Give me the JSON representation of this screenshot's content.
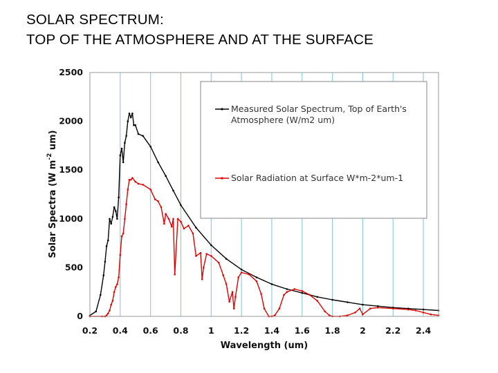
{
  "page": {
    "title_line1": "SOLAR SPECTRUM:",
    "title_line2": "TOP OF THE ATMOSPHERE AND AT THE SURFACE"
  },
  "chart_data": {
    "type": "line",
    "xlabel": "Wavelength (um)",
    "ylabel_parts": [
      "Solar Spectra (W m",
      "-2",
      " um)"
    ],
    "xlim": [
      0.2,
      2.5
    ],
    "ylim": [
      0,
      2500
    ],
    "x_ticks": [
      0.2,
      0.4,
      0.6,
      0.8,
      1,
      1.2,
      1.4,
      1.6,
      1.8,
      2,
      2.2,
      2.4
    ],
    "x_tick_labels": [
      "0.2",
      "0.4",
      "0.6",
      "0.8",
      "1",
      "1.2",
      "1.4",
      "1.6",
      "1.8",
      "2",
      "2.2",
      "2.4"
    ],
    "y_ticks": [
      0,
      500,
      1000,
      1500,
      2000,
      2500
    ],
    "y_tick_labels": [
      "0",
      "500",
      "1000",
      "1500",
      "2000",
      "2500"
    ],
    "vertical_grid": true,
    "grid_color": "#7fc4d8",
    "legend_position": "top-right",
    "series": [
      {
        "name": "Measured Solar Spectrum, Top of Earth's Atmosphere (W/m2 um)",
        "legend_lines": [
          "Measured Solar Spectrum, Top of Earth's",
          "Atmosphere (W/m2 um)"
        ],
        "color": "#000000",
        "x": [
          0.2,
          0.24,
          0.27,
          0.29,
          0.3,
          0.31,
          0.32,
          0.33,
          0.34,
          0.35,
          0.36,
          0.37,
          0.38,
          0.39,
          0.4,
          0.41,
          0.42,
          0.43,
          0.44,
          0.45,
          0.46,
          0.47,
          0.48,
          0.49,
          0.5,
          0.52,
          0.55,
          0.6,
          0.65,
          0.7,
          0.75,
          0.8,
          0.9,
          1.0,
          1.1,
          1.2,
          1.3,
          1.4,
          1.5,
          1.6,
          1.7,
          1.8,
          1.9,
          2.0,
          2.1,
          2.2,
          2.3,
          2.4,
          2.5
        ],
        "y": [
          10,
          50,
          220,
          420,
          560,
          720,
          780,
          1000,
          950,
          1020,
          1120,
          1080,
          1000,
          1220,
          1650,
          1720,
          1580,
          1780,
          1850,
          2000,
          2080,
          2040,
          2080,
          1960,
          1960,
          1870,
          1850,
          1740,
          1580,
          1440,
          1290,
          1140,
          910,
          730,
          590,
          480,
          400,
          330,
          280,
          240,
          200,
          170,
          145,
          120,
          105,
          90,
          80,
          70,
          60
        ]
      },
      {
        "name": "Solar Radiation at Surface W*m-2*um-1",
        "legend_lines": [
          "Solar Radiation at Surface W*m-2*um-1"
        ],
        "color": "#dd0000",
        "x": [
          0.2,
          0.28,
          0.3,
          0.31,
          0.32,
          0.33,
          0.34,
          0.35,
          0.36,
          0.37,
          0.38,
          0.39,
          0.4,
          0.41,
          0.42,
          0.43,
          0.44,
          0.45,
          0.46,
          0.47,
          0.48,
          0.5,
          0.52,
          0.55,
          0.6,
          0.63,
          0.65,
          0.67,
          0.69,
          0.7,
          0.72,
          0.74,
          0.75,
          0.76,
          0.78,
          0.8,
          0.82,
          0.85,
          0.88,
          0.9,
          0.93,
          0.94,
          0.95,
          0.97,
          1.0,
          1.05,
          1.08,
          1.1,
          1.12,
          1.14,
          1.15,
          1.16,
          1.18,
          1.2,
          1.25,
          1.3,
          1.33,
          1.35,
          1.38,
          1.4,
          1.42,
          1.45,
          1.48,
          1.5,
          1.55,
          1.6,
          1.65,
          1.7,
          1.75,
          1.78,
          1.8,
          1.85,
          1.9,
          1.95,
          1.98,
          2.0,
          2.05,
          2.1,
          2.2,
          2.3,
          2.35,
          2.4,
          2.45,
          2.5
        ],
        "y": [
          0,
          0,
          0,
          10,
          30,
          60,
          120,
          160,
          250,
          300,
          330,
          400,
          630,
          820,
          850,
          1000,
          1150,
          1300,
          1400,
          1400,
          1420,
          1380,
          1360,
          1350,
          1300,
          1200,
          1180,
          1120,
          950,
          1050,
          1000,
          920,
          1000,
          430,
          1000,
          970,
          900,
          930,
          850,
          620,
          650,
          380,
          500,
          640,
          620,
          550,
          420,
          330,
          150,
          250,
          80,
          200,
          400,
          450,
          430,
          360,
          230,
          80,
          0,
          0,
          10,
          80,
          220,
          250,
          280,
          260,
          220,
          160,
          50,
          10,
          0,
          0,
          10,
          40,
          80,
          20,
          80,
          90,
          80,
          70,
          60,
          40,
          20,
          10
        ]
      }
    ]
  }
}
